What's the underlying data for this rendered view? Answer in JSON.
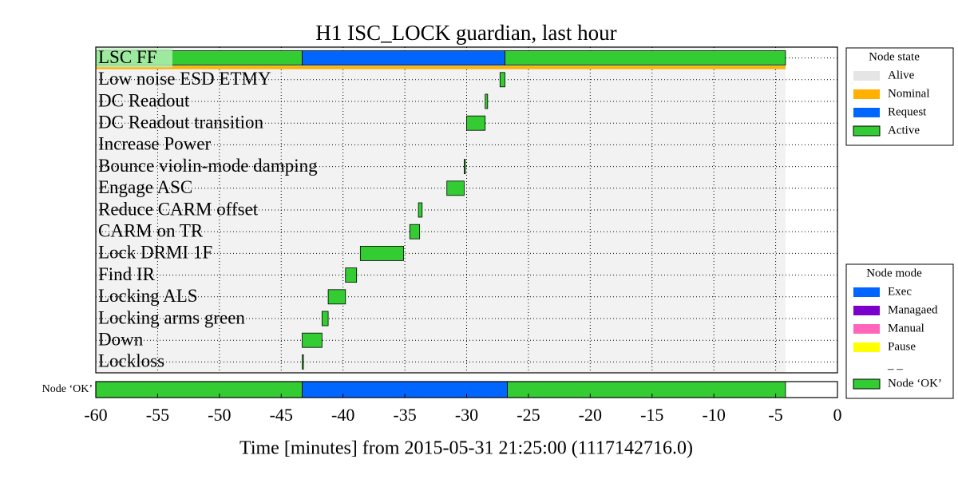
{
  "chart_data": {
    "type": "timeline",
    "title": "H1 ISC_LOCK guardian, last hour",
    "xlabel": "Time [minutes] from 2015-05-31 21:25:00 (1117142716.0)",
    "xlim": [
      -60,
      0
    ],
    "xticks": [
      -60,
      -55,
      -50,
      -45,
      -40,
      -35,
      -30,
      -25,
      -20,
      -15,
      -10,
      -5,
      0
    ],
    "grid": true,
    "current_row": 0,
    "alive": {
      "x": [
        -60,
        -4.2
      ],
      "color": "#e5e5e5"
    },
    "nominal": {
      "x": [
        -60,
        -4.2
      ],
      "color": "#ffb000"
    },
    "rows": [
      {
        "name": "LSC FF",
        "segments": [
          {
            "x": [
              -60,
              -43.3
            ],
            "color": "#33cc33"
          },
          {
            "x": [
              -43.3,
              -26.9
            ],
            "color": "#0066ff"
          },
          {
            "x": [
              -26.9,
              -4.2
            ],
            "color": "#33cc33"
          }
        ]
      },
      {
        "name": "Low noise ESD ETMY",
        "segments": [
          {
            "x": [
              -27.3,
              -26.9
            ],
            "color": "#33cc33"
          }
        ]
      },
      {
        "name": "DC Readout",
        "segments": [
          {
            "x": [
              -28.5,
              -28.3
            ],
            "color": "#33cc33"
          }
        ]
      },
      {
        "name": "DC Readout transition",
        "segments": [
          {
            "x": [
              -30.0,
              -28.5
            ],
            "color": "#33cc33"
          }
        ]
      },
      {
        "name": "Increase Power",
        "segments": []
      },
      {
        "name": "Bounce violin-mode damping",
        "segments": [
          {
            "x": [
              -30.2,
              -30.1
            ],
            "color": "#33cc33"
          }
        ]
      },
      {
        "name": "Engage ASC",
        "segments": [
          {
            "x": [
              -31.6,
              -30.2
            ],
            "color": "#33cc33"
          }
        ]
      },
      {
        "name": "Reduce CARM offset",
        "segments": [
          {
            "x": [
              -33.9,
              -33.6
            ],
            "color": "#33cc33"
          }
        ]
      },
      {
        "name": "CARM on TR",
        "segments": [
          {
            "x": [
              -34.6,
              -33.8
            ],
            "color": "#33cc33"
          }
        ]
      },
      {
        "name": "Lock DRMI 1F",
        "segments": [
          {
            "x": [
              -38.6,
              -35.1
            ],
            "color": "#33cc33"
          }
        ]
      },
      {
        "name": "Find IR",
        "segments": [
          {
            "x": [
              -39.8,
              -38.9
            ],
            "color": "#33cc33"
          }
        ]
      },
      {
        "name": "Locking ALS",
        "segments": [
          {
            "x": [
              -41.2,
              -39.8
            ],
            "color": "#33cc33"
          }
        ]
      },
      {
        "name": "Locking arms green",
        "segments": [
          {
            "x": [
              -41.7,
              -41.2
            ],
            "color": "#33cc33"
          }
        ]
      },
      {
        "name": "Down",
        "segments": [
          {
            "x": [
              -43.3,
              -41.7
            ],
            "color": "#33cc33"
          }
        ]
      },
      {
        "name": "Lockloss",
        "segments": [
          {
            "x": [
              -43.3,
              -43.2
            ],
            "color": "#33cc33"
          }
        ]
      }
    ],
    "ok_bar": {
      "name": "Node ‘OK’",
      "segments": [
        {
          "x": [
            -60,
            -43.3
          ],
          "color": "#33cc33"
        },
        {
          "x": [
            -43.3,
            -26.7
          ],
          "color": "#0066ff"
        },
        {
          "x": [
            -26.7,
            -4.2
          ],
          "color": "#33cc33"
        }
      ]
    },
    "legends": [
      {
        "title": "Node state",
        "entries": [
          {
            "name": "Alive",
            "color": "#e5e5e5"
          },
          {
            "name": "Nominal",
            "color": "#ffb000"
          },
          {
            "name": "Request",
            "color": "#0066ff"
          },
          {
            "name": "Active",
            "color": "#33cc33"
          }
        ]
      },
      {
        "title": "Node mode",
        "entries": [
          {
            "name": "Exec",
            "color": "#0066ff"
          },
          {
            "name": "Managaed",
            "color": "#7a00cc"
          },
          {
            "name": "Manual",
            "color": "#ff66bb"
          },
          {
            "name": "Pause",
            "color": "#ffff00"
          },
          {
            "name": "_ _",
            "color": "#ffffff"
          },
          {
            "name": "Node ‘OK’",
            "color": "#33cc33"
          }
        ]
      }
    ]
  }
}
